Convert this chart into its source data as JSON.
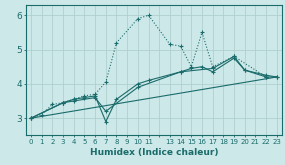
{
  "xlabel": "Humidex (Indice chaleur)",
  "xlim": [
    -0.5,
    23.5
  ],
  "ylim": [
    2.5,
    6.3
  ],
  "yticks": [
    3,
    4,
    5,
    6
  ],
  "bg_color": "#cde8e8",
  "line_color": "#1a6b6b",
  "grid_color": "#b0d0d0",
  "lines": [
    {
      "x": [
        0,
        1,
        2,
        3,
        4,
        5,
        6,
        7,
        8,
        10,
        11,
        13,
        14,
        15,
        16,
        17,
        19,
        22
      ],
      "y": [
        3.0,
        3.1,
        3.4,
        3.45,
        3.55,
        3.65,
        3.7,
        4.05,
        5.2,
        5.9,
        6.0,
        5.15,
        5.1,
        4.5,
        5.5,
        4.5,
        4.8,
        4.2
      ],
      "ls": ":",
      "marker": "+"
    },
    {
      "x": [
        0,
        3,
        4,
        5,
        6,
        7,
        8,
        10,
        11,
        14,
        15,
        16,
        17,
        19,
        20,
        22,
        23
      ],
      "y": [
        3.0,
        3.45,
        3.55,
        3.6,
        3.65,
        2.9,
        3.55,
        4.0,
        4.1,
        4.35,
        4.45,
        4.5,
        4.35,
        4.75,
        4.4,
        4.25,
        4.2
      ],
      "ls": "-",
      "marker": "+"
    },
    {
      "x": [
        0,
        3,
        4,
        6,
        7,
        10,
        14,
        17,
        19,
        20,
        22,
        23
      ],
      "y": [
        3.0,
        3.45,
        3.5,
        3.6,
        3.2,
        3.9,
        4.35,
        4.45,
        4.8,
        4.4,
        4.2,
        4.2
      ],
      "ls": "-",
      "marker": "+"
    },
    {
      "x": [
        0,
        23
      ],
      "y": [
        3.0,
        4.2
      ],
      "ls": "-",
      "marker": null
    }
  ]
}
